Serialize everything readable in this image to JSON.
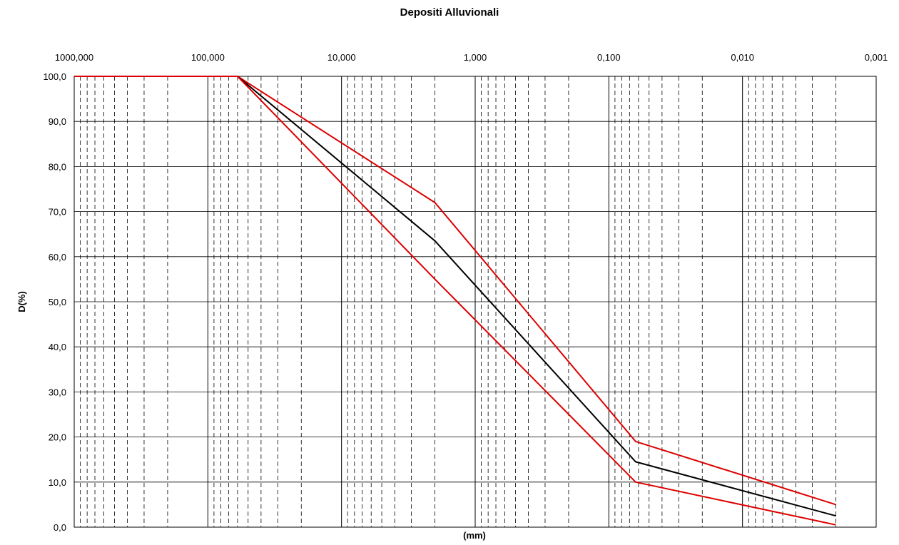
{
  "chart_data": {
    "type": "line",
    "title": "Depositi Alluvionali",
    "xlabel": "(mm)",
    "ylabel": "D(%)",
    "x_scale": "log",
    "x_reversed": true,
    "xlim": [
      1000,
      0.001
    ],
    "ylim": [
      0,
      100
    ],
    "grid": true,
    "legend": "none",
    "x_ticks": [
      1000,
      100,
      10,
      1,
      0.1,
      0.01,
      0.001
    ],
    "x_tick_labels": [
      "1000,000",
      "100,000",
      "10,000",
      "1,000",
      "0,100",
      "0,010",
      "0,001"
    ],
    "y_ticks": [
      0,
      10,
      20,
      30,
      40,
      50,
      60,
      70,
      80,
      90,
      100
    ],
    "y_tick_labels": [
      "0,0",
      "10,0",
      "20,0",
      "30,0",
      "40,0",
      "50,0",
      "60,0",
      "70,0",
      "80,0",
      "90,0",
      "100,0"
    ],
    "series": [
      {
        "color": "#dd0000",
        "x": [
          1000,
          60,
          2,
          0.063,
          0.002
        ],
        "y": [
          100,
          100,
          72,
          19,
          5
        ]
      },
      {
        "color": "#000000",
        "x": [
          1000,
          60,
          2,
          0.063,
          0.002
        ],
        "y": [
          100,
          100,
          63.5,
          14.5,
          2.5
        ]
      },
      {
        "color": "#dd0000",
        "x": [
          1000,
          60,
          2,
          0.063,
          0.002
        ],
        "y": [
          100,
          100,
          55,
          10,
          0.5
        ]
      }
    ]
  }
}
